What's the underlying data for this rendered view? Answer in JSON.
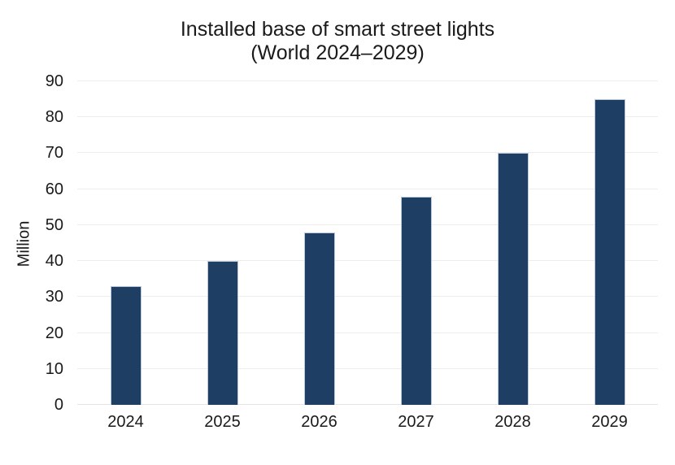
{
  "chart_data": {
    "type": "bar",
    "title": "Installed base of smart street lights",
    "subtitle": "(World 2024–2029)",
    "categories": [
      "2024",
      "2025",
      "2026",
      "2027",
      "2028",
      "2029"
    ],
    "values": [
      33,
      40,
      48,
      58,
      70,
      85
    ],
    "xlabel": "",
    "ylabel": "Million",
    "ylim": [
      0,
      90
    ],
    "ytick_step": 10,
    "yticks": [
      0,
      10,
      20,
      30,
      40,
      50,
      60,
      70,
      80,
      90
    ],
    "grid": true,
    "legend": "none",
    "colors": {
      "bar_fill": "#1f3e64",
      "bar_outline": "#bcc8d9",
      "gridline": "#ededed",
      "text": "#1a1a1a",
      "background": "#ffffff"
    }
  }
}
